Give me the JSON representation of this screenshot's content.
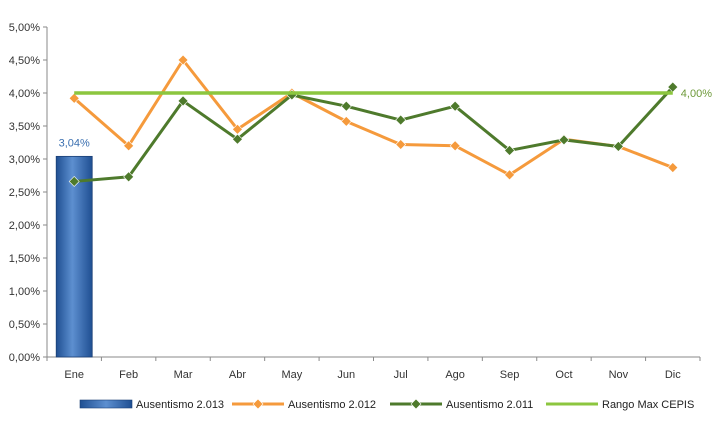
{
  "chart_data": {
    "type": "bar",
    "categories": [
      "Ene",
      "Feb",
      "Mar",
      "Abr",
      "May",
      "Jun",
      "Jul",
      "Ago",
      "Sep",
      "Oct",
      "Nov",
      "Dic"
    ],
    "ylim": [
      0,
      5
    ],
    "yticks": [
      "0,00%",
      "0,50%",
      "1,00%",
      "1,50%",
      "2,00%",
      "2,50%",
      "3,00%",
      "3,50%",
      "4,00%",
      "4,50%",
      "5,00%"
    ],
    "grid": false,
    "legend_position": "bottom",
    "series": [
      {
        "name": "Ausentismo 2.013",
        "kind": "bar",
        "color": "#3a6fb0",
        "values": [
          3.04,
          null,
          null,
          null,
          null,
          null,
          null,
          null,
          null,
          null,
          null,
          null
        ],
        "labels": [
          "3,04%"
        ]
      },
      {
        "name": "Ausentismo 2.012",
        "kind": "line",
        "color": "#f59a3c",
        "values": [
          3.92,
          3.2,
          4.5,
          3.45,
          4.0,
          3.57,
          3.22,
          3.2,
          2.76,
          3.3,
          3.19,
          2.87
        ]
      },
      {
        "name": "Ausentismo 2.011",
        "kind": "line",
        "color": "#4e7a2c",
        "values": [
          2.66,
          2.73,
          3.88,
          3.3,
          3.97,
          3.8,
          3.59,
          3.8,
          3.13,
          3.29,
          3.19,
          4.09
        ]
      },
      {
        "name": "Rango Max CEPIS",
        "kind": "line",
        "color": "#8cc63f",
        "values": [
          4.0,
          4.0,
          4.0,
          4.0,
          4.0,
          4.0,
          4.0,
          4.0,
          4.0,
          4.0,
          4.0,
          4.0
        ],
        "end_label": "4,00%"
      }
    ]
  }
}
